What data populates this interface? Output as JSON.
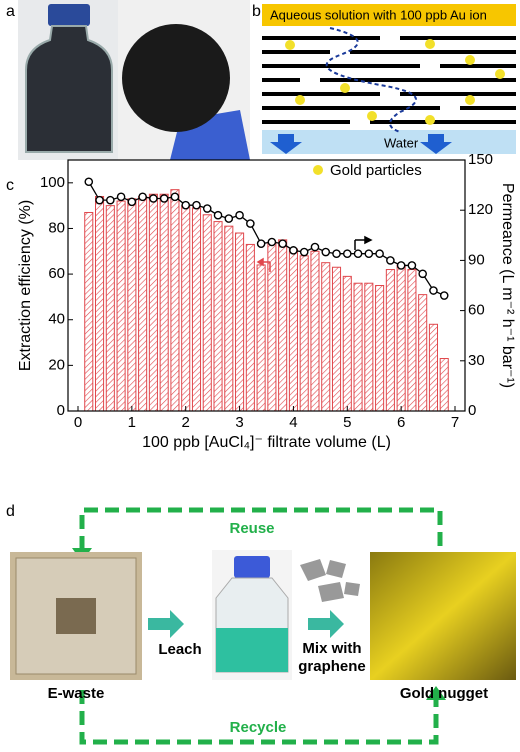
{
  "panels": {
    "a": "a",
    "b": "b",
    "c": "c",
    "d": "d"
  },
  "panel_b": {
    "solution": "Aqueous solution with 100 ppb Au ion",
    "water": "Water",
    "legend": "Gold particles"
  },
  "panel_d": {
    "reuse": "Reuse",
    "leach": "Leach",
    "mix": "Mix with graphene",
    "ewaste": "E-waste",
    "nugget": "Gold nugget",
    "recycle": "Recycle"
  },
  "chart_data": {
    "type": "bar",
    "xlabel": "100 ppb [AuCl₄]⁻ filtrate volume (L)",
    "ylabel": "Extraction efficiency (%)",
    "y2label": "Permeance (L m⁻² h⁻¹ bar⁻¹)",
    "x": [
      0.2,
      0.4,
      0.6,
      0.8,
      1.0,
      1.2,
      1.4,
      1.6,
      1.8,
      2.0,
      2.2,
      2.4,
      2.6,
      2.8,
      3.0,
      3.2,
      3.4,
      3.6,
      3.8,
      4.0,
      4.2,
      4.4,
      4.6,
      4.8,
      5.0,
      5.2,
      5.4,
      5.6,
      5.8,
      6.0,
      6.2,
      6.4,
      6.6,
      6.8
    ],
    "series": [
      {
        "type": "bar",
        "color": "#e0474c",
        "values": [
          87,
          94,
          90,
          92,
          93,
          94,
          95,
          95,
          97,
          90,
          89,
          86,
          83,
          81,
          78,
          73,
          64,
          74,
          75,
          71,
          68,
          70,
          65,
          63,
          59,
          56,
          56,
          55,
          62,
          64,
          62,
          51,
          38,
          23
        ]
      },
      {
        "type": "line",
        "axis": "y2",
        "color": "#000000",
        "values": [
          137,
          126,
          126,
          128,
          125,
          128,
          127,
          127,
          128,
          123,
          123,
          121,
          117,
          115,
          117,
          112,
          100,
          101,
          100,
          96,
          95,
          98,
          95,
          94,
          94,
          94,
          94,
          94,
          90,
          87,
          87,
          82,
          72,
          69
        ]
      }
    ],
    "xlim": [
      0,
      7
    ],
    "xticks": [
      0,
      1,
      2,
      3,
      4,
      5,
      6,
      7
    ],
    "ylim": [
      0,
      110
    ],
    "yticks": [
      0,
      20,
      40,
      60,
      80,
      100
    ],
    "y2lim": [
      0,
      150
    ],
    "y2ticks": [
      0,
      30,
      60,
      90,
      120,
      150
    ]
  }
}
